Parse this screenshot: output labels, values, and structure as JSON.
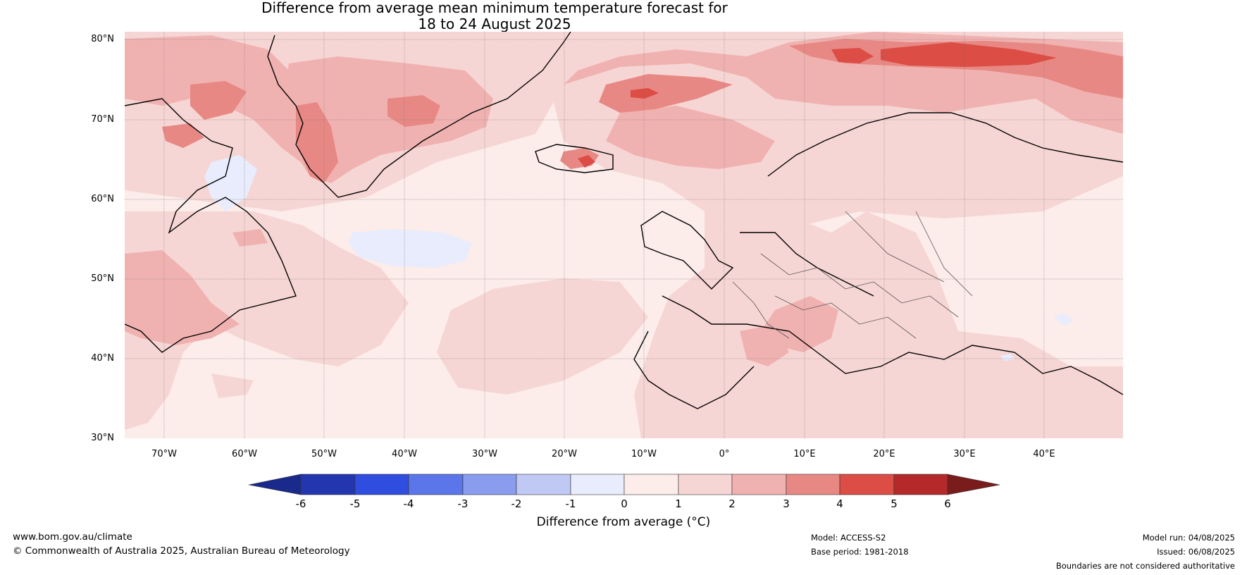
{
  "title": {
    "line1": "Difference from average mean minimum temperature forecast for",
    "line2": "18 to 24 August 2025"
  },
  "map": {
    "lat_labels": [
      "80°N",
      "70°N",
      "60°N",
      "50°N",
      "40°N",
      "30°N"
    ],
    "lon_labels": [
      "70°W",
      "60°W",
      "50°W",
      "40°W",
      "30°W",
      "20°W",
      "10°W",
      "0°",
      "10°E",
      "20°E",
      "30°E",
      "40°E"
    ],
    "colors": {
      "neg6": "#1a2a8c",
      "neg5": "#2336b0",
      "neg4": "#2f4ee0",
      "neg3": "#5a76e8",
      "neg2": "#8a9cee",
      "neg1": "#c0c8f4",
      "zero": "#e8ecfc",
      "pos0": "#fcecea",
      "pos1": "#f6d6d4",
      "pos2": "#f0b2b0",
      "pos3": "#e88884",
      "pos4": "#db4d45",
      "pos5": "#b5292b",
      "pos6": "#7a1c1c"
    }
  },
  "colorbar": {
    "ticks": [
      "-6",
      "-5",
      "-4",
      "-3",
      "-2",
      "-1",
      "0",
      "1",
      "2",
      "3",
      "4",
      "5",
      "6"
    ],
    "label": "Difference from average (°C)"
  },
  "footer": {
    "website": "www.bom.gov.au/climate",
    "copyright": "© Commonwealth of Australia 2025, Australian Bureau of Meteorology",
    "model": "Model: ACCESS-S2",
    "base_period": "Base period: 1981-2018",
    "model_run": "Model run: 04/08/2025",
    "issued": "Issued: 06/08/2025",
    "disclaimer": "Boundaries are not considered authoritative"
  }
}
